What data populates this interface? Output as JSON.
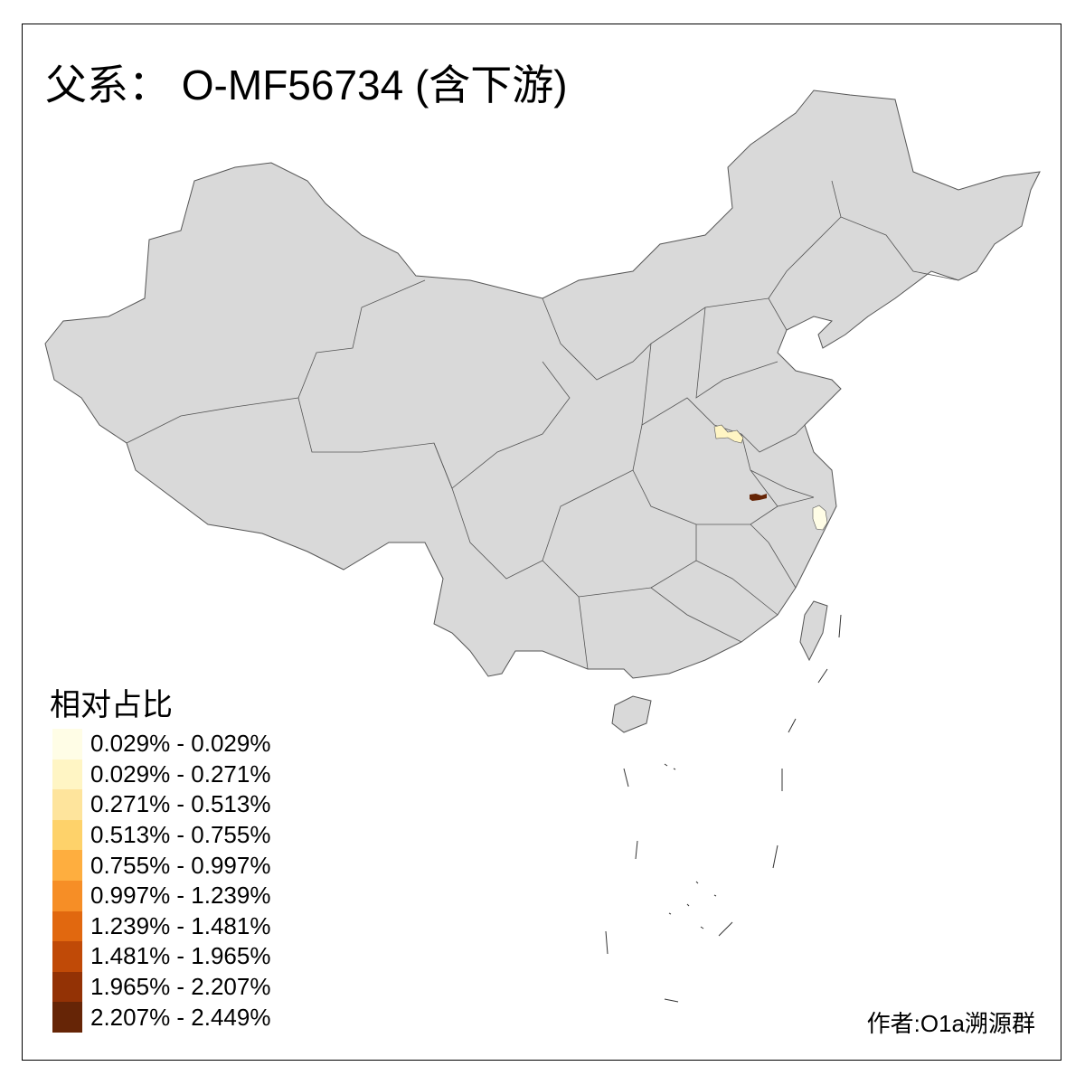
{
  "title": "父系： O-MF56734 (含下游)",
  "legend": {
    "title": "相对占比",
    "items": [
      {
        "label": "0.029% - 0.029%",
        "color": "#FFFDE6"
      },
      {
        "label": "0.029% - 0.271%",
        "color": "#FFF5C4"
      },
      {
        "label": "0.271% - 0.513%",
        "color": "#FEE49C"
      },
      {
        "label": "0.513% - 0.755%",
        "color": "#FED26A"
      },
      {
        "label": "0.755% - 0.997%",
        "color": "#FEAE3F"
      },
      {
        "label": "0.997% - 1.239%",
        "color": "#F68E26"
      },
      {
        "label": "1.239% - 1.481%",
        "color": "#E1680F"
      },
      {
        "label": "1.481% - 1.965%",
        "color": "#C04A07"
      },
      {
        "label": "1.965% - 2.207%",
        "color": "#933205"
      },
      {
        "label": "2.207% - 2.449%",
        "color": "#662506"
      }
    ]
  },
  "map": {
    "base_color": "#D9D9D9",
    "border_color": "#555555",
    "highlighted_regions": [
      {
        "area": "northern Anhui / eastern Henan",
        "class": 1
      },
      {
        "area": "central Anhui",
        "class": 9
      },
      {
        "area": "northern Zhejiang",
        "class": 0
      }
    ]
  },
  "author": "作者:O1a溯源群"
}
